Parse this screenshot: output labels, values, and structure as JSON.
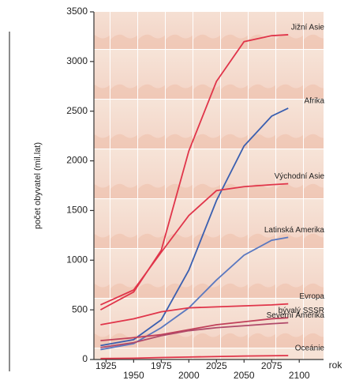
{
  "chart_data": {
    "type": "line",
    "ylabel": "počet obyvatel (mil.lat)",
    "xlabel": "rok",
    "x": [
      1920,
      1950,
      1975,
      2000,
      2025,
      2050,
      2075,
      2090
    ],
    "xlim": [
      1914,
      2122
    ],
    "xticks": [
      1925,
      1950,
      1975,
      2000,
      2025,
      2050,
      2075,
      2100
    ],
    "ylim": [
      0,
      3500
    ],
    "yticks": [
      0,
      500,
      1000,
      1500,
      2000,
      2500,
      3000,
      3500
    ],
    "series": [
      {
        "name": "Jižní Asie",
        "color": "#e0354a",
        "values": [
          500,
          680,
          1100,
          2100,
          2800,
          3200,
          3260,
          3270
        ]
      },
      {
        "name": "Afrika",
        "color": "#3a5fb0",
        "values": [
          140,
          200,
          400,
          900,
          1600,
          2150,
          2450,
          2530
        ]
      },
      {
        "name": "Východní Asie",
        "color": "#e0354a",
        "values": [
          550,
          700,
          1080,
          1450,
          1700,
          1740,
          1760,
          1770
        ]
      },
      {
        "name": "Latinská Amerika",
        "color": "#5a78c0",
        "values": [
          100,
          160,
          320,
          520,
          800,
          1050,
          1200,
          1230
        ]
      },
      {
        "name": "Evropa",
        "color": "#e0354a",
        "values": [
          350,
          410,
          480,
          520,
          530,
          540,
          550,
          560
        ]
      },
      {
        "name": "bývalý SSSR",
        "color": "#c0405a",
        "values": [
          190,
          220,
          250,
          300,
          350,
          380,
          410,
          420
        ]
      },
      {
        "name": "Severní Amerika",
        "color": "#b04a6a",
        "values": [
          120,
          170,
          240,
          290,
          320,
          340,
          360,
          370
        ]
      },
      {
        "name": "Oceánie",
        "color": "#e0354a",
        "values": [
          10,
          13,
          20,
          25,
          30,
          35,
          38,
          40
        ]
      }
    ]
  }
}
